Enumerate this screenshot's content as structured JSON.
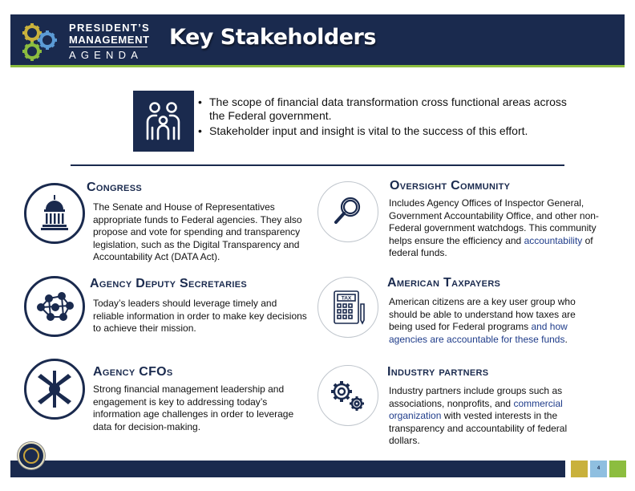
{
  "header": {
    "logo": {
      "line1": "PRESIDENT’S",
      "line2": "MANAGEMENT",
      "line3": "AGENDA"
    },
    "title": "Key Stakeholders"
  },
  "intro": {
    "icon": "people-family-icon",
    "bullets": [
      "The scope of financial data transformation cross functional areas across the Federal government.",
      "Stakeholder input and insight is vital to the success of this effort."
    ]
  },
  "stakeholders": {
    "congress": {
      "icon": "capitol-icon",
      "title": "Congress",
      "body": "The Senate and House of Representatives appropriate funds to Federal agencies. They also propose and vote for spending and transparency legislation, such as the Digital Transparency and Accountability Act (DATA Act)."
    },
    "deputy": {
      "icon": "network-people-icon",
      "title": "Agency Deputy Secretaries",
      "body": "Today’s leaders should leverage timely and reliable information in order to make key decisions to achieve their mission."
    },
    "cfos": {
      "icon": "hands-together-icon",
      "title": "Agency CFOs",
      "body": "Strong financial management leadership and engagement is key to addressing today’s information age challenges in order to leverage data for decision-making."
    },
    "oversight": {
      "icon": "magnifying-glass-icon",
      "title": "Oversight Community",
      "body_a": "Includes Agency Offices of Inspector General, Government Accountability Office, and other non-Federal government watchdogs. This community helps ensure the efficiency and ",
      "body_b": "accountability",
      "body_c": " of federal funds."
    },
    "taxpayers": {
      "icon": "tax-calculator-icon",
      "title": "American Taxpayers",
      "tax_label": "TAX",
      "body_a": "American citizens are a key user group who should be able to understand how taxes are being used for Federal programs ",
      "body_b": "and how agencies are accountable for these funds",
      "body_c": "."
    },
    "industry": {
      "icon": "gears-icon",
      "title": "Industry partners",
      "body_a": "Industry partners include groups such as associations, nonprofits, and ",
      "body_b": "commercial organization",
      "body_c": " with vested interests in the transparency and accountability of federal dollars."
    }
  },
  "footer": {
    "seal_icon": "presidential-seal-icon",
    "page_number": "4",
    "colors": {
      "navy": "#1a2a4e",
      "gold": "#c9b13c",
      "blue": "#8fbfe0",
      "green": "#8cbd3f"
    }
  }
}
